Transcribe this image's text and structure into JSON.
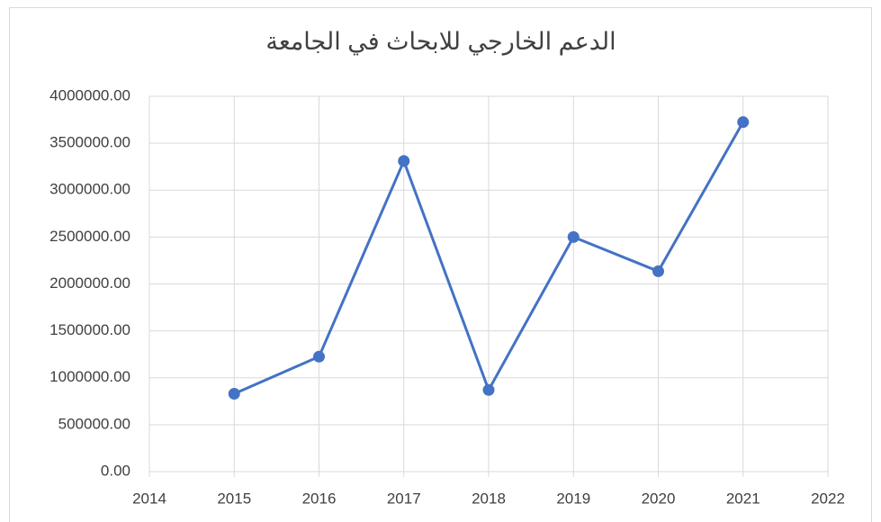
{
  "chart_data": {
    "type": "line",
    "title": "الدعم الخارجي للابحاث في الجامعة",
    "x": [
      2015,
      2016,
      2017,
      2018,
      2019,
      2020,
      2021
    ],
    "values": [
      830000,
      1225000,
      3310000,
      870000,
      2500000,
      2135000,
      3725000
    ],
    "color": "#4472c4",
    "xlim": [
      2014,
      2022
    ],
    "xticks": [
      2014,
      2015,
      2016,
      2017,
      2018,
      2019,
      2020,
      2021,
      2022
    ],
    "ylim": [
      0,
      4000000
    ],
    "yticks": [
      {
        "value": 0,
        "label": "0.00"
      },
      {
        "value": 500000,
        "label": "500000.00"
      },
      {
        "value": 1000000,
        "label": "1000000.00"
      },
      {
        "value": 1500000,
        "label": "1500000.00"
      },
      {
        "value": 2000000,
        "label": "2000000.00"
      },
      {
        "value": 2500000,
        "label": "2500000.00"
      },
      {
        "value": 3000000,
        "label": "3000000.00"
      },
      {
        "value": 3500000,
        "label": "3500000.00"
      },
      {
        "value": 4000000,
        "label": "4000000.00"
      }
    ],
    "grid": true
  }
}
